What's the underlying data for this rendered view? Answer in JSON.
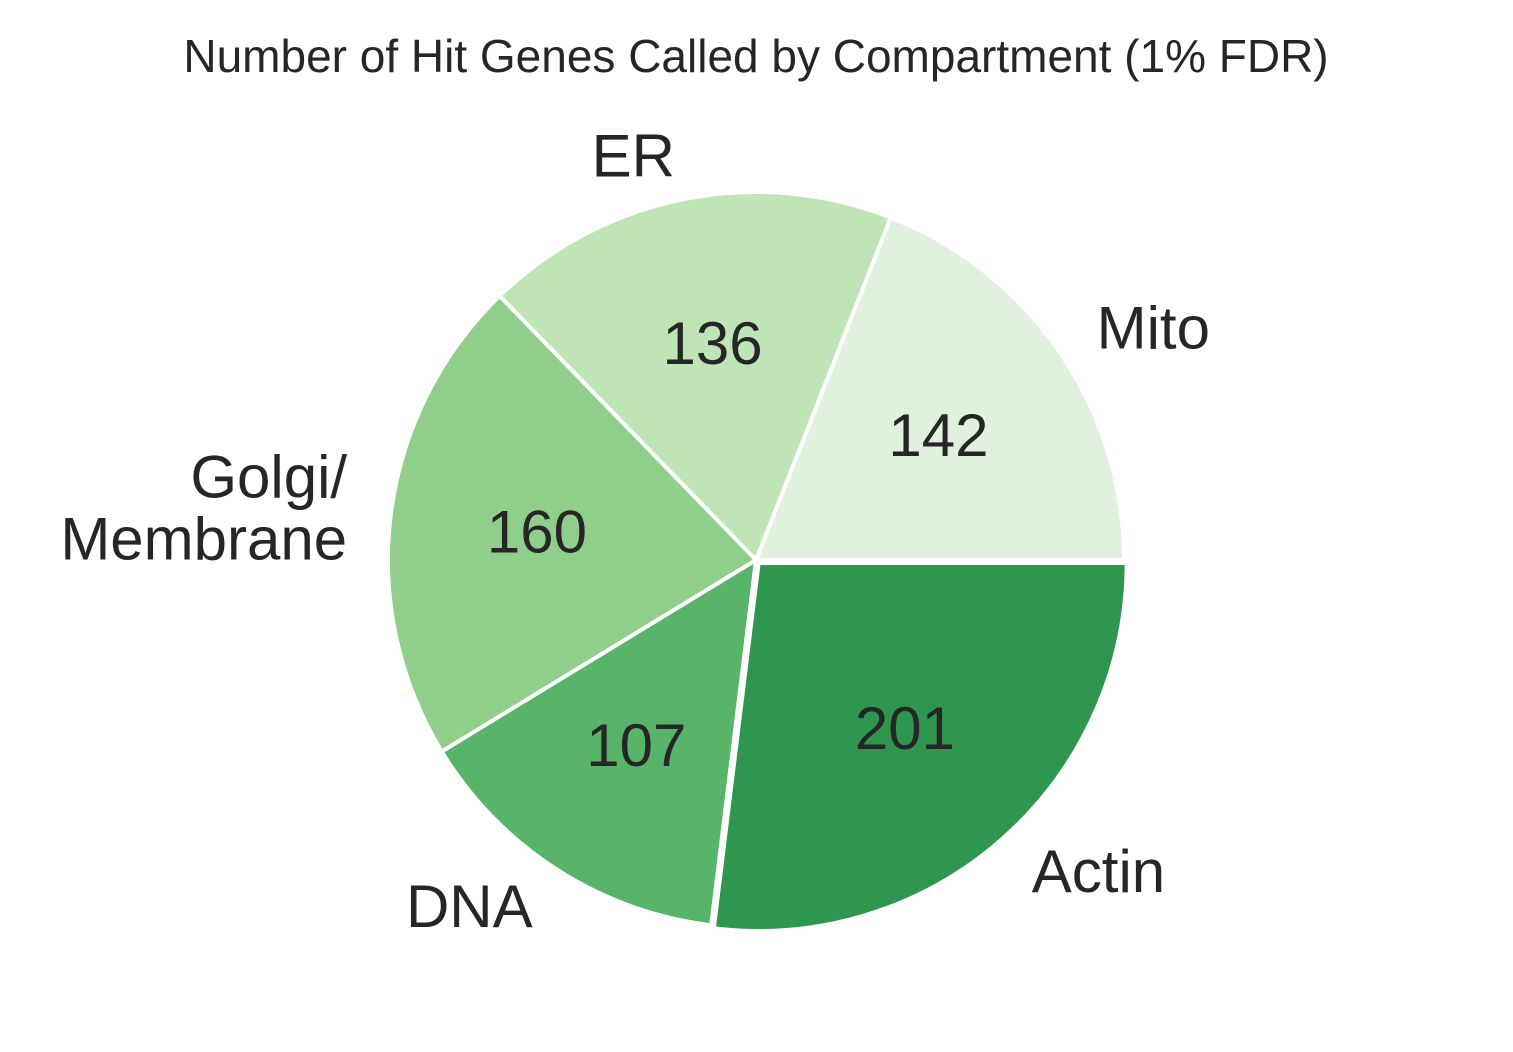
{
  "chart_data": {
    "type": "pie",
    "title": "Number of Hit Genes Called by Compartment (1% FDR)",
    "start_angle_deg": 0,
    "direction": "counterclockwise",
    "slices": [
      {
        "label": "Mito",
        "label_lines": [
          "Mito"
        ],
        "value": 142,
        "color": "#e0f2dd"
      },
      {
        "label": "ER",
        "label_lines": [
          "ER"
        ],
        "value": 136,
        "color": "#bfe5b7"
      },
      {
        "label": "Golgi/ Membrane",
        "label_lines": [
          "Golgi/",
          "Membrane"
        ],
        "value": 160,
        "color": "#90cf8b"
      },
      {
        "label": "DNA",
        "label_lines": [
          "DNA"
        ],
        "value": 107,
        "color": "#58b469"
      },
      {
        "label": "Actin",
        "label_lines": [
          "Actin"
        ],
        "value": 201,
        "color": "#2e964e",
        "explode": true
      }
    ]
  }
}
